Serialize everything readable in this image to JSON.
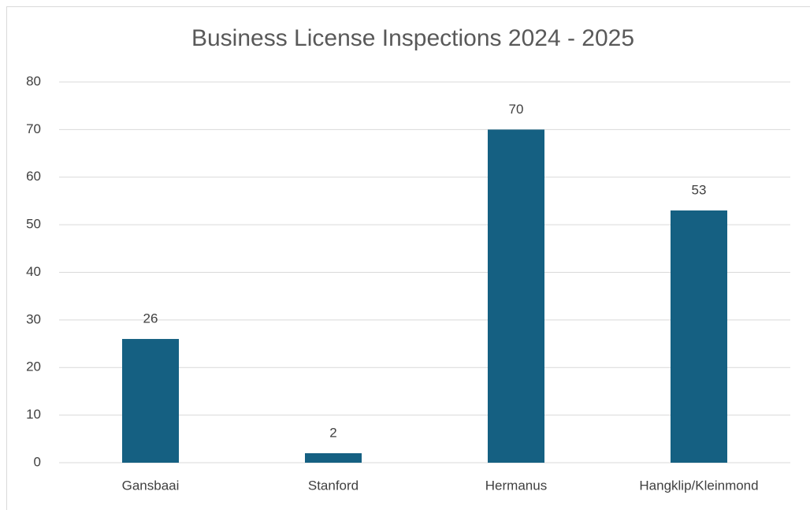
{
  "chart_data": {
    "type": "bar",
    "title": "Business License Inspections 2024 - 2025",
    "categories": [
      "Gansbaai",
      "Stanford",
      "Hermanus",
      "Hangklip/Kleinmond"
    ],
    "values": [
      26,
      2,
      70,
      53
    ],
    "color": "#156082",
    "ylim": [
      0,
      80
    ],
    "yticks": [
      0,
      10,
      20,
      30,
      40,
      50,
      60,
      70,
      80
    ],
    "grid": true,
    "data_labels": true
  }
}
